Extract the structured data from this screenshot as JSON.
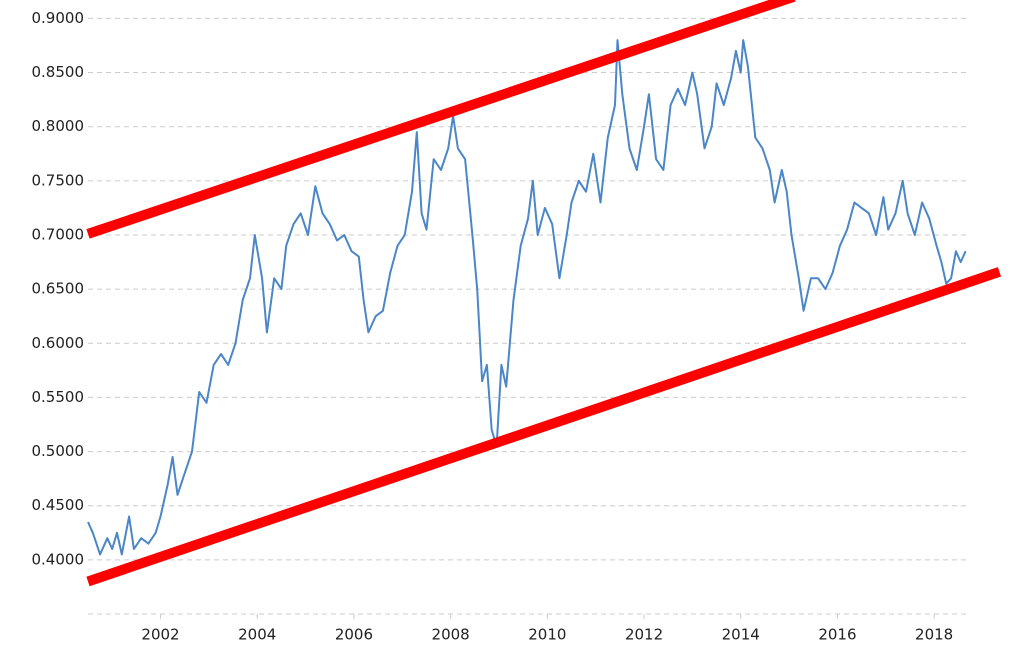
{
  "chart_data": {
    "type": "line",
    "xlim": [
      2000.5,
      2018.7
    ],
    "ylim": [
      0.35,
      0.917
    ],
    "xticks": [
      2002,
      2004,
      2006,
      2008,
      2010,
      2012,
      2014,
      2016,
      2018
    ],
    "yticks": [
      {
        "value": 0.4,
        "label": "0.4000"
      },
      {
        "value": 0.45,
        "label": "0.4500"
      },
      {
        "value": 0.5,
        "label": "0.5000"
      },
      {
        "value": 0.55,
        "label": "0.5500"
      },
      {
        "value": 0.6,
        "label": "0.6000"
      },
      {
        "value": 0.65,
        "label": "0.6500"
      },
      {
        "value": 0.7,
        "label": "0.7000"
      },
      {
        "value": 0.75,
        "label": "0.7500"
      },
      {
        "value": 0.8,
        "label": "0.8000"
      },
      {
        "value": 0.85,
        "label": "0.8500"
      },
      {
        "value": 0.9,
        "label": "0.9000"
      }
    ],
    "grid": true,
    "series": [
      {
        "color": "#4a86c8",
        "x": [
          2000.5,
          2000.6,
          2000.75,
          2000.9,
          2001.0,
          2001.1,
          2001.2,
          2001.35,
          2001.45,
          2001.6,
          2001.75,
          2001.9,
          2002.0,
          2002.15,
          2002.25,
          2002.35,
          2002.5,
          2002.65,
          2002.8,
          2002.95,
          2003.1,
          2003.25,
          2003.4,
          2003.55,
          2003.7,
          2003.85,
          2003.95,
          2004.1,
          2004.2,
          2004.35,
          2004.5,
          2004.6,
          2004.75,
          2004.9,
          2005.05,
          2005.2,
          2005.35,
          2005.5,
          2005.65,
          2005.8,
          2005.95,
          2006.1,
          2006.2,
          2006.3,
          2006.45,
          2006.6,
          2006.75,
          2006.9,
          2007.05,
          2007.2,
          2007.3,
          2007.4,
          2007.5,
          2007.65,
          2007.8,
          2007.95,
          2008.05,
          2008.15,
          2008.3,
          2008.45,
          2008.55,
          2008.65,
          2008.75,
          2008.85,
          2008.95,
          2009.05,
          2009.15,
          2009.3,
          2009.45,
          2009.6,
          2009.7,
          2009.8,
          2009.95,
          2010.1,
          2010.25,
          2010.4,
          2010.5,
          2010.65,
          2010.8,
          2010.95,
          2011.1,
          2011.25,
          2011.4,
          2011.45,
          2011.55,
          2011.7,
          2011.85,
          2012.0,
          2012.1,
          2012.25,
          2012.4,
          2012.55,
          2012.7,
          2012.85,
          2013.0,
          2013.1,
          2013.25,
          2013.4,
          2013.5,
          2013.65,
          2013.8,
          2013.9,
          2014.0,
          2014.05,
          2014.15,
          2014.3,
          2014.45,
          2014.6,
          2014.7,
          2014.85,
          2014.95,
          2015.05,
          2015.2,
          2015.3,
          2015.45,
          2015.6,
          2015.75,
          2015.9,
          2016.05,
          2016.2,
          2016.35,
          2016.5,
          2016.65,
          2016.8,
          2016.95,
          2017.05,
          2017.2,
          2017.35,
          2017.45,
          2017.6,
          2017.75,
          2017.9,
          2018.05,
          2018.15,
          2018.25,
          2018.35,
          2018.45,
          2018.55,
          2018.65
        ],
        "values": [
          0.435,
          0.425,
          0.405,
          0.42,
          0.41,
          0.425,
          0.405,
          0.44,
          0.41,
          0.42,
          0.415,
          0.425,
          0.44,
          0.47,
          0.495,
          0.46,
          0.48,
          0.5,
          0.555,
          0.545,
          0.58,
          0.59,
          0.58,
          0.6,
          0.64,
          0.66,
          0.7,
          0.66,
          0.61,
          0.66,
          0.65,
          0.69,
          0.71,
          0.72,
          0.7,
          0.745,
          0.72,
          0.71,
          0.695,
          0.7,
          0.685,
          0.68,
          0.64,
          0.61,
          0.625,
          0.63,
          0.665,
          0.69,
          0.7,
          0.74,
          0.795,
          0.72,
          0.705,
          0.77,
          0.76,
          0.78,
          0.81,
          0.78,
          0.77,
          0.7,
          0.65,
          0.565,
          0.58,
          0.52,
          0.505,
          0.58,
          0.56,
          0.64,
          0.69,
          0.715,
          0.75,
          0.7,
          0.725,
          0.71,
          0.66,
          0.7,
          0.73,
          0.75,
          0.74,
          0.775,
          0.73,
          0.79,
          0.82,
          0.88,
          0.83,
          0.78,
          0.76,
          0.8,
          0.83,
          0.77,
          0.76,
          0.82,
          0.835,
          0.82,
          0.85,
          0.83,
          0.78,
          0.8,
          0.84,
          0.82,
          0.845,
          0.87,
          0.85,
          0.88,
          0.855,
          0.79,
          0.78,
          0.76,
          0.73,
          0.76,
          0.74,
          0.7,
          0.66,
          0.63,
          0.66,
          0.66,
          0.65,
          0.665,
          0.69,
          0.705,
          0.73,
          0.725,
          0.72,
          0.7,
          0.735,
          0.705,
          0.72,
          0.75,
          0.72,
          0.7,
          0.73,
          0.715,
          0.69,
          0.675,
          0.655,
          0.66,
          0.685,
          0.675,
          0.685
        ]
      }
    ],
    "trend_lines": [
      {
        "color": "#ff0000",
        "x": [
          2000.5,
          2015.1
        ],
        "y": [
          0.701,
          0.92
        ]
      },
      {
        "color": "#ff0000",
        "x": [
          2000.5,
          2019.35
        ],
        "y": [
          0.38,
          0.666
        ]
      }
    ]
  }
}
